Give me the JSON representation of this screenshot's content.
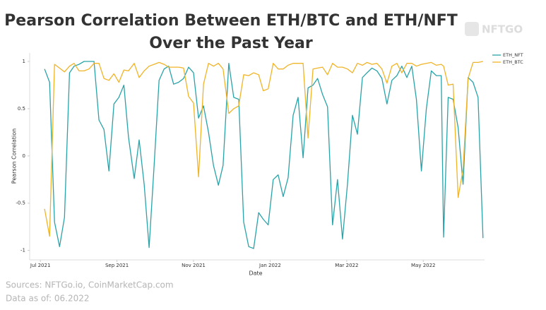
{
  "logo": "NFTGO",
  "footer": {
    "sources": "Sources: NFTGo.io, CoinMarketCap.com",
    "date": "Data as of: 06.2022"
  },
  "chart_data": {
    "type": "line",
    "title": [
      "Pearson Correlation Between ETH/BTC and ETH/NFT",
      "Over the Past Year"
    ],
    "x_label": "Date",
    "y_label": "Pearson Correlation",
    "x": [
      0.11,
      0.24,
      0.37,
      0.5,
      0.63,
      0.76,
      0.88,
      1.01,
      1.14,
      1.27,
      1.4,
      1.53,
      1.66,
      1.79,
      1.92,
      2.05,
      2.18,
      2.3,
      2.45,
      2.58,
      2.71,
      2.84,
      2.97,
      3.1,
      3.23,
      3.35,
      3.48,
      3.61,
      3.74,
      3.87,
      4.0,
      4.13,
      4.26,
      4.39,
      4.52,
      4.65,
      4.77,
      4.92,
      5.05,
      5.18,
      5.31,
      5.44,
      5.57,
      5.7,
      5.82,
      5.95,
      6.08,
      6.21,
      6.34,
      6.47,
      6.6,
      6.73,
      6.86,
      6.99,
      7.12,
      7.24,
      7.37,
      7.5,
      7.63,
      7.76,
      7.89,
      8.02,
      8.15,
      8.28,
      8.41,
      8.53,
      8.66,
      8.79,
      8.92,
      9.05,
      9.18,
      9.31,
      9.44,
      9.57,
      9.7,
      9.82,
      9.95,
      10.08,
      10.21,
      10.34,
      10.47,
      10.53,
      10.65,
      10.78,
      10.91,
      11.04,
      11.17,
      11.3,
      11.43,
      11.56
    ],
    "series": [
      {
        "name": "ETH_NFT",
        "color": "#2aa3a8",
        "values": [
          0.92,
          0.78,
          -0.7,
          -0.96,
          -0.65,
          0.88,
          0.95,
          0.97,
          1.0,
          1.0,
          1.0,
          0.38,
          0.28,
          -0.16,
          0.55,
          0.62,
          0.75,
          0.2,
          -0.24,
          0.17,
          -0.3,
          -0.97,
          -0.1,
          0.8,
          0.92,
          0.95,
          0.76,
          0.78,
          0.82,
          0.94,
          0.88,
          0.4,
          0.53,
          0.25,
          -0.1,
          -0.31,
          -0.1,
          0.98,
          0.62,
          0.6,
          -0.7,
          -0.96,
          -0.98,
          -0.6,
          -0.67,
          -0.73,
          -0.25,
          -0.2,
          -0.43,
          -0.23,
          0.43,
          0.62,
          -0.02,
          0.72,
          0.75,
          0.82,
          0.65,
          0.52,
          -0.73,
          -0.25,
          -0.88,
          -0.3,
          0.43,
          0.23,
          0.83,
          0.88,
          0.93,
          0.9,
          0.82,
          0.55,
          0.8,
          0.85,
          0.95,
          0.83,
          0.95,
          0.6,
          -0.16,
          0.5,
          0.9,
          0.85,
          0.85,
          -0.86,
          0.62,
          0.6,
          0.3,
          -0.3,
          0.83,
          0.78,
          0.62,
          -0.87
        ]
      },
      {
        "name": "ETH_BTC",
        "color": "#f0b429",
        "values": [
          -0.56,
          -0.85,
          0.97,
          0.93,
          0.89,
          0.95,
          0.98,
          0.9,
          0.9,
          0.92,
          0.98,
          0.98,
          0.82,
          0.8,
          0.87,
          0.78,
          0.91,
          0.9,
          0.98,
          0.83,
          0.9,
          0.95,
          0.97,
          0.99,
          0.97,
          0.94,
          0.94,
          0.94,
          0.93,
          0.63,
          0.56,
          -0.22,
          0.76,
          0.98,
          0.95,
          0.98,
          0.92,
          0.45,
          0.5,
          0.53,
          0.86,
          0.85,
          0.88,
          0.86,
          0.69,
          0.71,
          0.98,
          0.92,
          0.92,
          0.96,
          0.98,
          0.98,
          0.98,
          0.19,
          0.92,
          0.93,
          0.94,
          0.86,
          0.98,
          0.94,
          0.94,
          0.92,
          0.88,
          0.98,
          0.96,
          0.99,
          0.97,
          0.98,
          0.92,
          0.77,
          0.95,
          0.98,
          0.88,
          0.98,
          0.98,
          0.95,
          0.97,
          0.98,
          0.99,
          0.96,
          0.97,
          0.95,
          0.75,
          0.76,
          -0.44,
          -0.14,
          0.82,
          0.99,
          0.99,
          1.0
        ]
      }
    ],
    "xlim": [
      -0.28,
      11.6
    ],
    "ylim": [
      -1.1,
      1.09
    ],
    "xticks": [
      {
        "value": 0,
        "label": "Jul 2021"
      },
      {
        "value": 2,
        "label": "Sep 2021"
      },
      {
        "value": 4,
        "label": "Nov 2021"
      },
      {
        "value": 6,
        "label": "Jan 2022"
      },
      {
        "value": 8,
        "label": "Mar 2022"
      },
      {
        "value": 10,
        "label": "May 2022"
      }
    ],
    "yticks": [
      -1,
      -0.5,
      0,
      0.5,
      1
    ],
    "legend": "top-right"
  }
}
